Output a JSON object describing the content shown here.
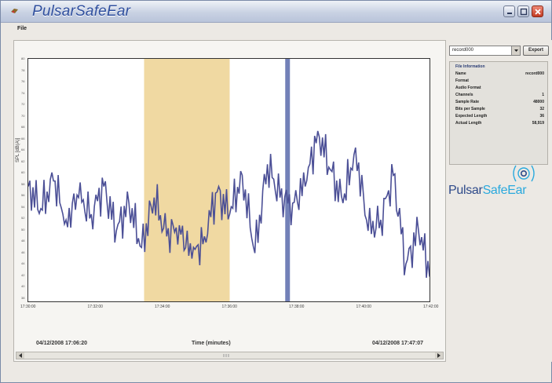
{
  "window": {
    "title": "PulsarSafeEar"
  },
  "menu": {
    "file_label": "File"
  },
  "plot": {
    "y_axis_title": "SPL [dB(A)]",
    "y_tick_labels": [
      "80",
      "78",
      "76",
      "74",
      "72",
      "70",
      "68",
      "66",
      "64",
      "62",
      "60",
      "58",
      "56",
      "54",
      "52",
      "50",
      "48",
      "46",
      "44",
      "42",
      "40",
      "38"
    ],
    "x_tick_labels": [
      "17:30:00",
      "17:32:00",
      "17:34:00",
      "17:36:00",
      "17:38:00",
      "17:40:00",
      "17:42:00"
    ],
    "start_label": "04/12/2008 17:06:20",
    "x_axis_title": "Time (minutes)",
    "end_label": "04/12/2008 17:47:07"
  },
  "side": {
    "file_select_value": "record000",
    "export_label": "Export",
    "info_heading": "File Information",
    "info_rows": [
      {
        "key": "Name",
        "value": "record000"
      },
      {
        "key": "Format",
        "value": ""
      },
      {
        "key": "Audio Format",
        "value": ""
      },
      {
        "key": "Channels",
        "value": "1"
      },
      {
        "key": "Sample Rate",
        "value": "48000"
      },
      {
        "key": "Bits per Sample",
        "value": "32"
      },
      {
        "key": "Expected Length",
        "value": "36"
      },
      {
        "key": "Actual Length",
        "value": "58,919"
      }
    ],
    "brand_part1": "Pulsar",
    "brand_part2": "SafeEar"
  },
  "colors": {
    "highlight_band": "#f0d9a2",
    "signal_line": "#4b4f96",
    "cursor_line": "#7381b8",
    "title_blue": "#2f4f9e"
  },
  "chart_data": {
    "type": "line",
    "xlabel": "Time (minutes)",
    "ylabel": "SPL [dB(A)]",
    "ylim": [
      37,
      81
    ],
    "highlight_region": [
      17.336,
      17.37
    ],
    "cursor_x": 17.393,
    "x": [
      17.29,
      17.295,
      17.3,
      17.305,
      17.31,
      17.315,
      17.32,
      17.325,
      17.33,
      17.335,
      17.34,
      17.345,
      17.35,
      17.355,
      17.36,
      17.365,
      17.37,
      17.375,
      17.38,
      17.385,
      17.39,
      17.395,
      17.4,
      17.405,
      17.41,
      17.415,
      17.42,
      17.425,
      17.43,
      17.435,
      17.44,
      17.445,
      17.45
    ],
    "series": [
      {
        "values": [
          58,
          54,
          59,
          52,
          56,
          53,
          58,
          50,
          55,
          47,
          56,
          49,
          51,
          45,
          49,
          57,
          53,
          60,
          46,
          62,
          56,
          55,
          58,
          68,
          61,
          55,
          65,
          50,
          52,
          60,
          44,
          50,
          42
        ]
      }
    ]
  }
}
